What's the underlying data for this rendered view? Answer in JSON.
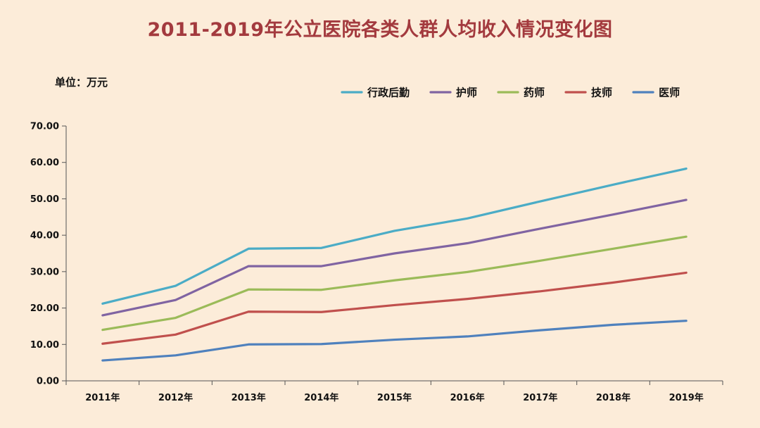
{
  "chart_data": {
    "type": "line",
    "title": "2011-2019年公立医院各类人群人均收入情况变化图",
    "unit_label": "单位：万元",
    "xlabel": "",
    "ylabel": "",
    "categories": [
      "2011年",
      "2012年",
      "2013年",
      "2014年",
      "2015年",
      "2016年",
      "2017年",
      "2018年",
      "2019年"
    ],
    "ylim": [
      0,
      70
    ],
    "yticks": [
      "0.00",
      "10.00",
      "20.00",
      "30.00",
      "40.00",
      "50.00",
      "60.00",
      "70.00"
    ],
    "grid": false,
    "legend_position": "top-right",
    "series": [
      {
        "name": "行政后勤",
        "color": "#4bacc6",
        "values": [
          21.2,
          26.1,
          36.3,
          36.5,
          41.2,
          44.6,
          49.3,
          53.9,
          58.3
        ]
      },
      {
        "name": "护师",
        "color": "#8064a2",
        "values": [
          18.0,
          22.2,
          31.5,
          31.5,
          35.0,
          37.8,
          41.8,
          45.7,
          49.7
        ]
      },
      {
        "name": "药师",
        "color": "#9bbb59",
        "values": [
          14.0,
          17.3,
          25.1,
          25.0,
          27.6,
          29.9,
          33.0,
          36.3,
          39.6
        ]
      },
      {
        "name": "技师",
        "color": "#c0504d",
        "values": [
          10.2,
          12.7,
          19.0,
          18.9,
          20.8,
          22.5,
          24.6,
          27.0,
          29.7
        ]
      },
      {
        "name": "医师",
        "color": "#4f81bd",
        "values": [
          5.6,
          7.0,
          10.0,
          10.1,
          11.3,
          12.2,
          13.9,
          15.4,
          16.5
        ]
      }
    ]
  }
}
